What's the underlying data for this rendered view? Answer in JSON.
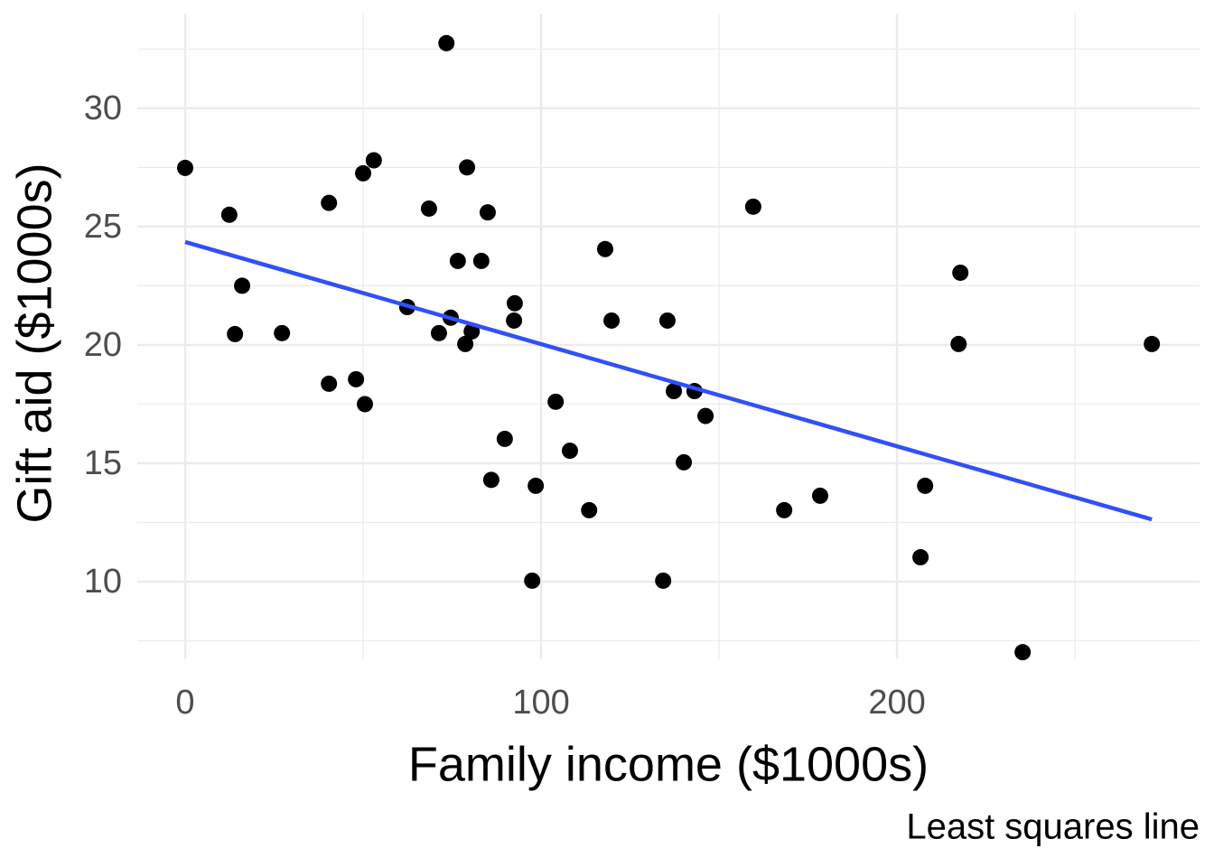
{
  "chart_data": {
    "type": "scatter",
    "xlabel": "Family income ($1000s)",
    "ylabel": "Gift aid ($1000s)",
    "caption": "Least squares line",
    "xlim": [
      -13.45,
      285.0
    ],
    "ylim": [
      6.72,
      34.0
    ],
    "xticks": [
      0,
      100,
      200
    ],
    "yticks": [
      10,
      15,
      20,
      25,
      30
    ],
    "xminorticks": [
      50,
      150,
      250
    ],
    "yminorticks": [
      7.5,
      12.5,
      17.5,
      22.5,
      27.5,
      32.5
    ],
    "grid": true,
    "color": "#000000",
    "x": [
      0,
      12.4,
      16.0,
      14.0,
      27.2,
      40.4,
      40.4,
      48.0,
      50.0,
      53.0,
      50.5,
      62.4,
      68.5,
      73.4,
      71.3,
      74.6,
      76.6,
      79.2,
      78.7,
      80.5,
      83.2,
      85.0,
      86.0,
      89.8,
      92.6,
      92.4,
      97.5,
      98.5,
      104.1,
      108.1,
      113.5,
      118.0,
      119.8,
      134.3,
      135.5,
      137.3,
      140.1,
      143.1,
      146.2,
      159.6,
      168.3,
      178.4,
      206.6,
      207.9,
      217.8,
      217.3,
      235.3,
      271.6
    ],
    "y": [
      27.48,
      25.5,
      22.5,
      20.46,
      20.5,
      26.0,
      18.36,
      18.55,
      27.25,
      27.8,
      17.5,
      21.6,
      25.76,
      32.75,
      20.5,
      21.15,
      23.55,
      27.5,
      20.04,
      20.57,
      23.55,
      25.6,
      14.3,
      16.03,
      21.76,
      21.03,
      10.04,
      14.05,
      17.6,
      15.53,
      13.02,
      24.05,
      21.03,
      10.04,
      21.03,
      18.05,
      15.04,
      18.05,
      17.0,
      25.84,
      13.02,
      13.63,
      11.03,
      14.05,
      23.05,
      20.04,
      7.02,
      20.04
    ],
    "fit": {
      "x": [
        0,
        271.6
      ],
      "y": [
        24.35,
        12.63
      ],
      "color": "#3050f8"
    }
  }
}
